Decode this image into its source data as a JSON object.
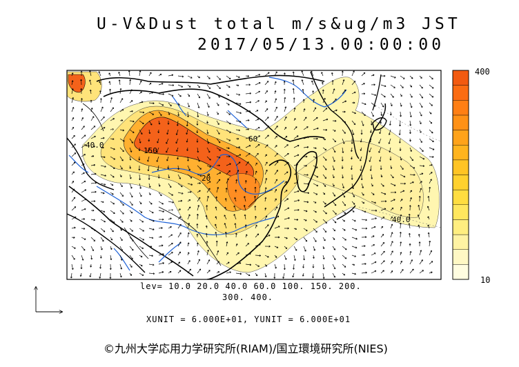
{
  "title": {
    "line1": "U-V&Dust total m/s&ug/m3 JST",
    "line2": "2017/05/13.00:00:00"
  },
  "levels": {
    "line1": "lev= 10.0 20.0 40.0 60.0 100. 150. 200.",
    "line2": "300. 400."
  },
  "units_line": "XUNIT = 6.000E+01, YUNIT = 6.000E+01",
  "colorbar": {
    "max_label": "400",
    "min_label": "10",
    "colors": [
      "#fffde0",
      "#fff8c4",
      "#fff3a3",
      "#ffee80",
      "#ffe75e",
      "#ffdd40",
      "#ffd12e",
      "#ffc424",
      "#ffb41e",
      "#ffa31a",
      "#ff9116",
      "#ff7f14",
      "#fb6c12",
      "#f25a10"
    ]
  },
  "contour_labels": [
    "40.0",
    "150",
    "20",
    "60",
    "40.0"
  ],
  "credit": "©九州大学応用力学研究所(RIAM)/国立環境研究所(NIES)",
  "colors": {
    "dust_low": "#fff6b0",
    "dust_mid": "#ffd84a",
    "dust_high": "#ff7b1c",
    "dust_peak": "#f2551a",
    "coastline": "#000000",
    "rivers": "#1a5fd6"
  }
}
